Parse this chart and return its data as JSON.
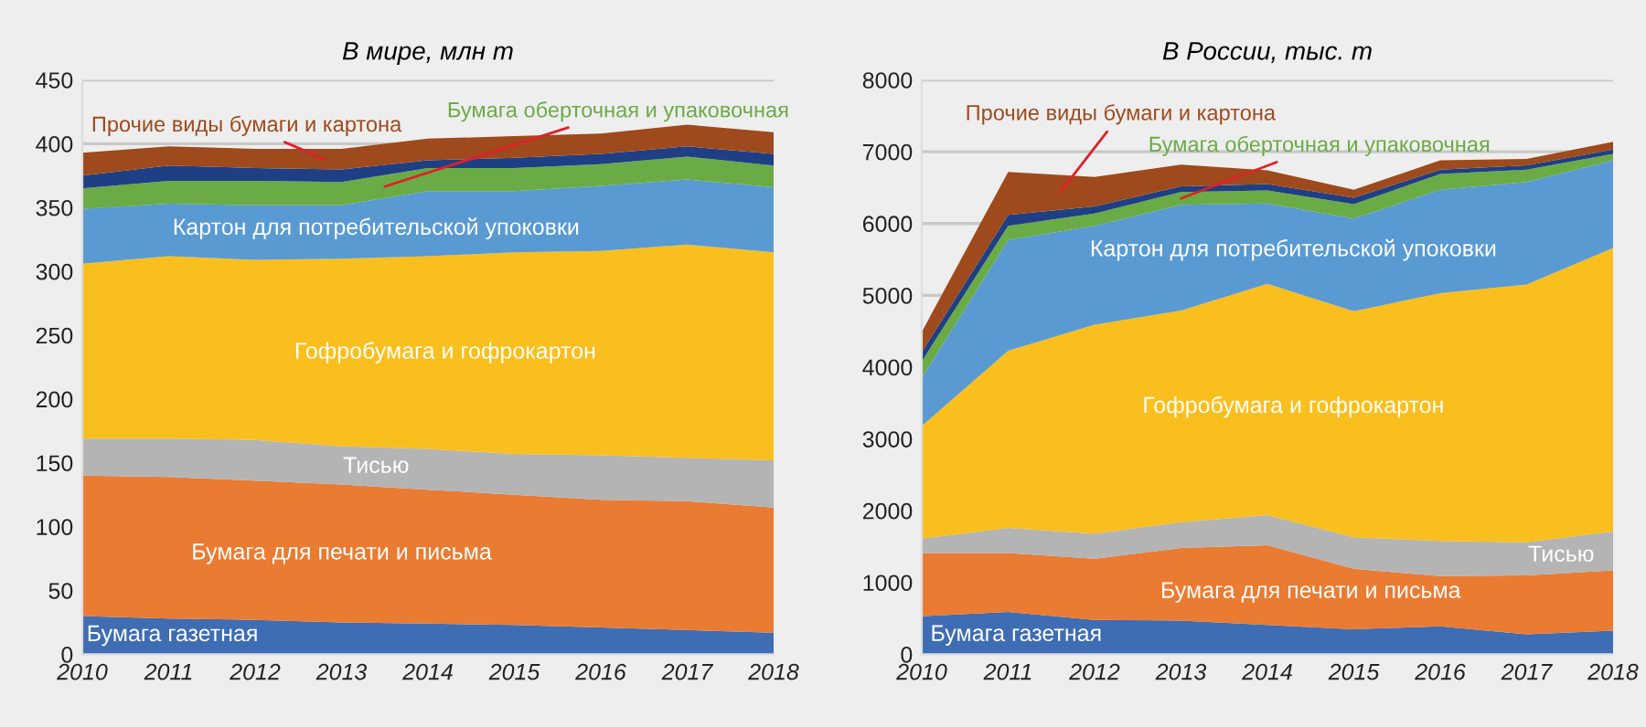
{
  "chart_data": [
    {
      "type": "area",
      "stacked": true,
      "title": "В мире, млн т",
      "categories": [
        "2010",
        "2011",
        "2012",
        "2013",
        "2014",
        "2015",
        "2016",
        "2017",
        "2018"
      ],
      "ylim": [
        0,
        450
      ],
      "yticks": [
        0,
        50,
        100,
        150,
        200,
        250,
        300,
        350,
        400,
        450
      ],
      "grid": "y",
      "legend": false,
      "series": [
        {
          "name": "Бумага газетная",
          "color": "#3f6db3",
          "values": [
            30,
            28,
            27,
            25,
            24,
            23,
            21,
            19,
            17
          ]
        },
        {
          "name": "Бумага для печати и письма",
          "color": "#ea7b32",
          "values": [
            110,
            111,
            109,
            108,
            105,
            102,
            100,
            101,
            98
          ]
        },
        {
          "name": "Тисью",
          "color": "#b4b4b4",
          "values": [
            29,
            30,
            32,
            30,
            32,
            32,
            35,
            34,
            37
          ]
        },
        {
          "name": "Гофробумага и гофрокартон",
          "color": "#f9bf1f",
          "values": [
            137,
            143,
            141,
            147,
            151,
            158,
            160,
            167,
            163
          ]
        },
        {
          "name": "Картон для потребительской упоковки",
          "color": "#5a9ad2",
          "values": [
            43,
            41,
            43,
            42,
            51,
            48,
            51,
            51,
            51
          ]
        },
        {
          "name": "Бумага оберточная и упаковочная",
          "color": "#6aab45",
          "values": [
            16,
            18,
            19,
            18,
            18,
            18,
            17,
            18,
            17
          ]
        },
        {
          "color": "#1f3f84",
          "values": [
            10,
            12,
            10,
            10,
            6,
            8,
            8,
            8,
            9
          ]
        },
        {
          "name": "Прочие виды бумаги и картона",
          "color": "#9e4a1c",
          "values": [
            18,
            15,
            15,
            16,
            17,
            17,
            16,
            17,
            17
          ]
        }
      ]
    },
    {
      "type": "area",
      "stacked": true,
      "title": "В России, тыс. т",
      "categories": [
        "2010",
        "2011",
        "2012",
        "2013",
        "2014",
        "2015",
        "2016",
        "2017",
        "2018"
      ],
      "ylim": [
        0,
        8000
      ],
      "yticks": [
        0,
        1000,
        2000,
        3000,
        4000,
        5000,
        6000,
        7000,
        8000
      ],
      "grid": "y",
      "legend": false,
      "series": [
        {
          "name": "Бумага газетная",
          "color": "#3f6db3",
          "values": [
            530,
            590,
            480,
            470,
            410,
            350,
            390,
            280,
            330
          ]
        },
        {
          "name": "Бумага для печати и письма",
          "color": "#ea7b32",
          "values": [
            880,
            820,
            850,
            1010,
            1110,
            840,
            700,
            820,
            840
          ]
        },
        {
          "name": "Тисью",
          "color": "#b4b4b4",
          "values": [
            200,
            350,
            350,
            360,
            420,
            440,
            490,
            460,
            540
          ]
        },
        {
          "name": "Гофробумага и гофрокартон",
          "color": "#f9bf1f",
          "values": [
            1570,
            2470,
            2910,
            2950,
            3220,
            3150,
            3450,
            3590,
            3950
          ]
        },
        {
          "name": "Картон для потребительской упоковки",
          "color": "#5a9ad2",
          "values": [
            670,
            1540,
            1380,
            1470,
            1120,
            1290,
            1440,
            1430,
            1220
          ]
        },
        {
          "name": "Бумага оберточная и упаковочная",
          "color": "#6aab45",
          "values": [
            230,
            200,
            170,
            180,
            180,
            200,
            220,
            170,
            90
          ]
        },
        {
          "color": "#1f3f84",
          "values": [
            130,
            150,
            100,
            80,
            90,
            90,
            60,
            60,
            60
          ]
        },
        {
          "name": "Прочие виды бумаги и картона",
          "color": "#9e4a1c",
          "values": [
            280,
            600,
            410,
            300,
            190,
            110,
            130,
            90,
            110
          ]
        }
      ]
    }
  ]
}
